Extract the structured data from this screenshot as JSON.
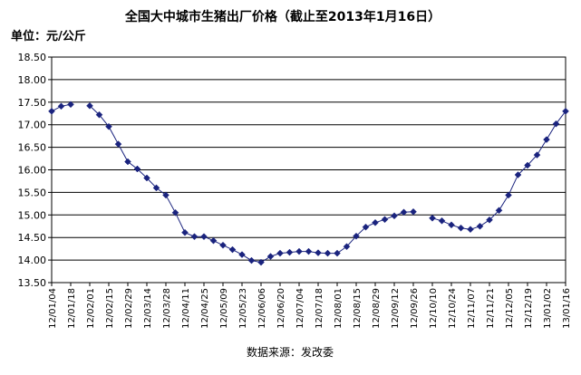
{
  "chart_data": {
    "type": "line",
    "title": "全国大中城市生猪出厂价格（截止至2013年1月16日）",
    "unit_label": "单位：元/公斤",
    "source": "数据来源：发改委",
    "xlabel": "",
    "ylabel": "",
    "ylim": [
      13.5,
      18.5
    ],
    "yticks": [
      "18.50",
      "18.00",
      "17.50",
      "17.00",
      "16.50",
      "16.00",
      "15.50",
      "15.00",
      "14.50",
      "14.00",
      "13.50"
    ],
    "grid": true,
    "legend": "none",
    "colors": {
      "line": "#1a237e",
      "marker": "#1a237e",
      "grid": "#000000",
      "axis": "#000000"
    },
    "x_tick_labels": [
      "12/01/04",
      "12/01/18",
      "12/02/01",
      "12/02/15",
      "12/02/29",
      "12/03/14",
      "12/03/28",
      "12/04/11",
      "12/04/25",
      "12/05/09",
      "12/05/23",
      "12/06/06",
      "12/06/20",
      "12/07/04",
      "12/07/18",
      "12/08/01",
      "12/08/15",
      "12/08/29",
      "12/09/12",
      "12/09/26",
      "12/10/10",
      "12/10/24",
      "12/11/07",
      "12/11/21",
      "12/12/05",
      "12/12/19",
      "13/01/02",
      "13/01/16"
    ],
    "series": [
      {
        "points": [
          [
            "12/01/04",
            17.3
          ],
          [
            "12/01/11",
            17.41
          ],
          [
            "12/01/18",
            17.45
          ],
          [
            "12/02/01",
            17.42
          ],
          [
            "12/02/08",
            17.22
          ],
          [
            "12/02/15",
            16.96
          ],
          [
            "12/02/22",
            16.57
          ],
          [
            "12/02/29",
            16.18
          ],
          [
            "12/03/07",
            16.02
          ],
          [
            "12/03/14",
            15.82
          ],
          [
            "12/03/21",
            15.6
          ],
          [
            "12/03/28",
            15.44
          ],
          [
            "12/04/04",
            15.05
          ],
          [
            "12/04/11",
            14.61
          ],
          [
            "12/04/18",
            14.52
          ],
          [
            "12/04/25",
            14.52
          ],
          [
            "12/05/02",
            14.43
          ],
          [
            "12/05/09",
            14.33
          ],
          [
            "12/05/16",
            14.23
          ],
          [
            "12/05/23",
            14.12
          ],
          [
            "12/05/30",
            13.99
          ],
          [
            "12/06/06",
            13.95
          ],
          [
            "12/06/13",
            14.08
          ],
          [
            "12/06/20",
            14.15
          ],
          [
            "12/06/27",
            14.17
          ],
          [
            "12/07/04",
            14.19
          ],
          [
            "12/07/11",
            14.19
          ],
          [
            "12/07/18",
            14.16
          ],
          [
            "12/07/25",
            14.15
          ],
          [
            "12/08/01",
            14.15
          ],
          [
            "12/08/08",
            14.3
          ],
          [
            "12/08/15",
            14.53
          ],
          [
            "12/08/22",
            14.73
          ],
          [
            "12/08/29",
            14.83
          ],
          [
            "12/09/05",
            14.9
          ],
          [
            "12/09/12",
            14.98
          ],
          [
            "12/09/19",
            15.06
          ],
          [
            "12/09/26",
            15.07
          ],
          [
            "12/10/10",
            14.93
          ],
          [
            "12/10/17",
            14.87
          ],
          [
            "12/10/24",
            14.78
          ],
          [
            "12/10/31",
            14.71
          ],
          [
            "12/11/07",
            14.68
          ],
          [
            "12/11/14",
            14.75
          ],
          [
            "12/11/21",
            14.89
          ],
          [
            "12/11/28",
            15.1
          ],
          [
            "12/12/05",
            15.44
          ],
          [
            "12/12/12",
            15.89
          ],
          [
            "12/12/19",
            16.1
          ],
          [
            "12/12/26",
            16.33
          ],
          [
            "13/01/02",
            16.67
          ],
          [
            "13/01/09",
            17.02
          ],
          [
            "13/01/16",
            17.3
          ]
        ]
      }
    ]
  }
}
